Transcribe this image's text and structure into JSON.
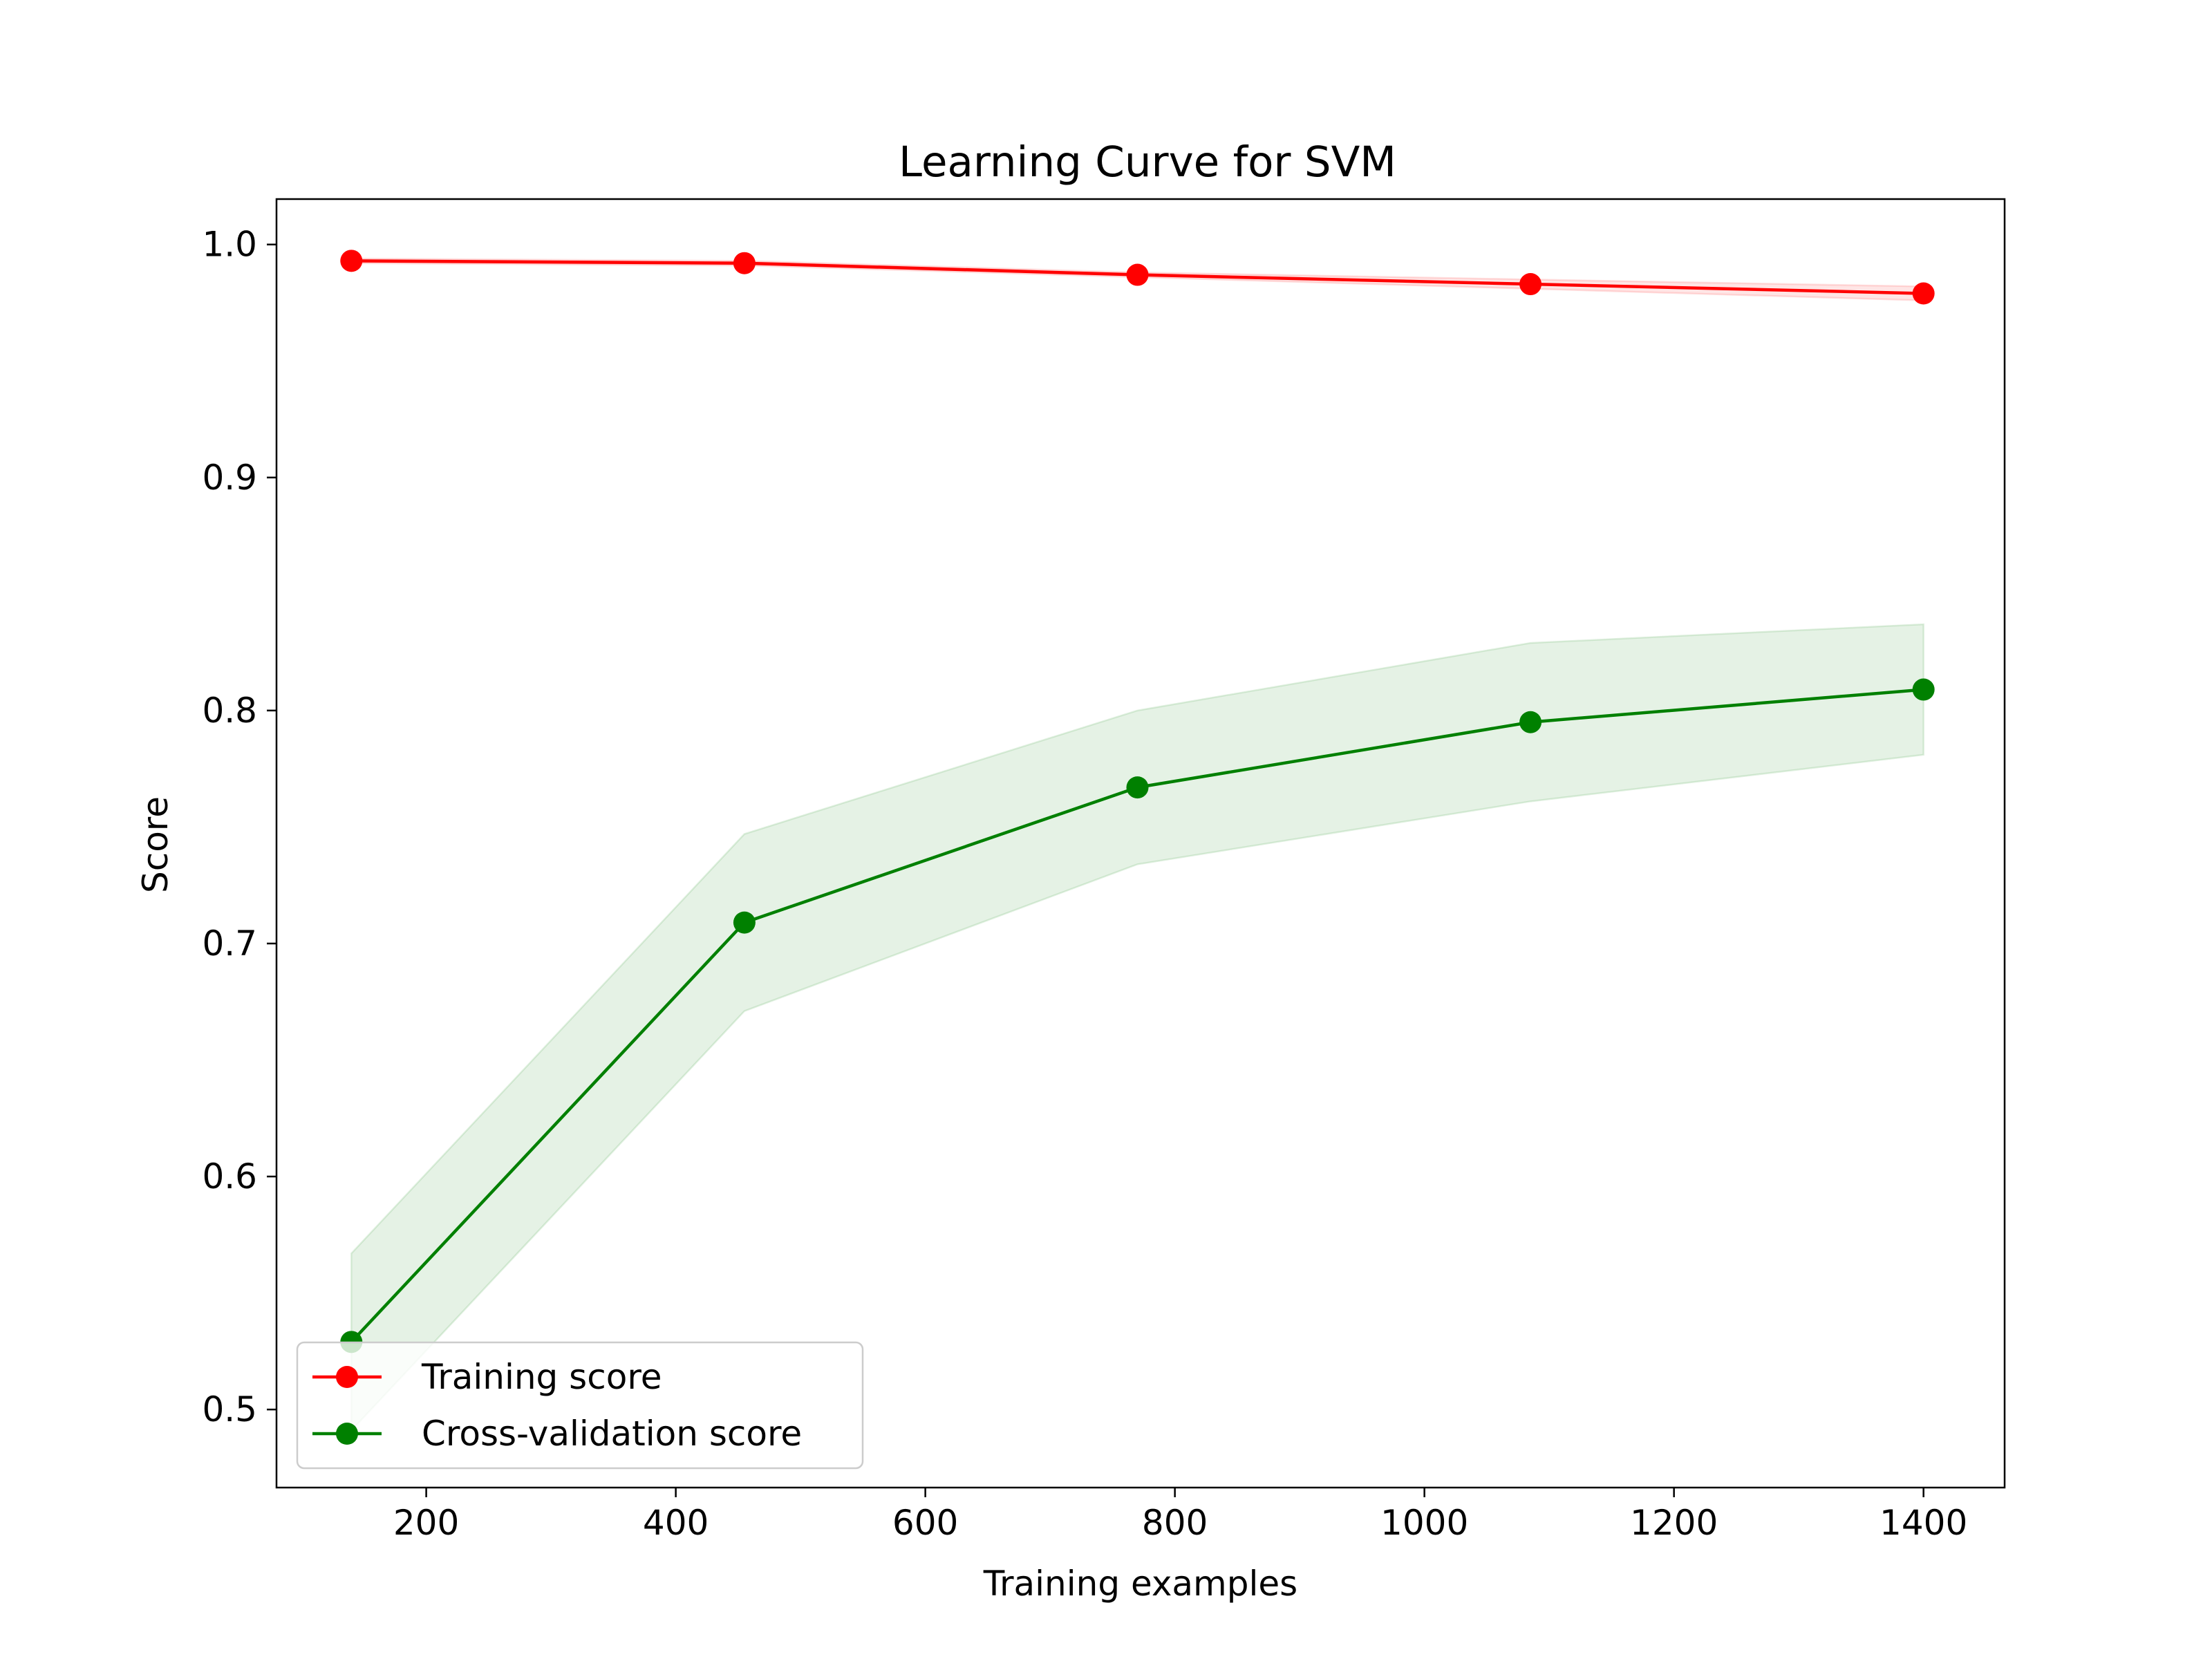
{
  "chart_data": {
    "type": "line",
    "title": "Learning Curve for SVM",
    "xlabel": "Training examples",
    "ylabel": "Score",
    "xlim": [
      80,
      1465
    ],
    "ylim": [
      0.4665,
      1.0195
    ],
    "xticks": [
      200,
      400,
      600,
      800,
      1000,
      1200,
      1400
    ],
    "yticks": [
      0.5,
      0.6,
      0.7,
      0.8,
      0.9,
      1.0
    ],
    "xtick_labels": [
      "200",
      "400",
      "600",
      "800",
      "1000",
      "1200",
      "1400"
    ],
    "ytick_labels": [
      "0.5",
      "0.6",
      "0.7",
      "0.8",
      "0.9",
      "1.0"
    ],
    "grid": false,
    "legend_position": "lower-left",
    "x": [
      140,
      455,
      770,
      1085,
      1400
    ],
    "series": [
      {
        "name": "Training score",
        "color": "#ff0000",
        "values": [
          0.993,
          0.992,
          0.987,
          0.983,
          0.979
        ],
        "band_upper": [
          0.994,
          0.993,
          0.988,
          0.985,
          0.982
        ],
        "band_lower": [
          0.992,
          0.991,
          0.986,
          0.981,
          0.976
        ]
      },
      {
        "name": "Cross-validation score",
        "color": "#008000",
        "values": [
          0.529,
          0.709,
          0.767,
          0.795,
          0.809
        ],
        "band_upper": [
          0.567,
          0.747,
          0.8,
          0.829,
          0.837
        ],
        "band_lower": [
          0.491,
          0.671,
          0.734,
          0.761,
          0.781
        ]
      }
    ]
  }
}
